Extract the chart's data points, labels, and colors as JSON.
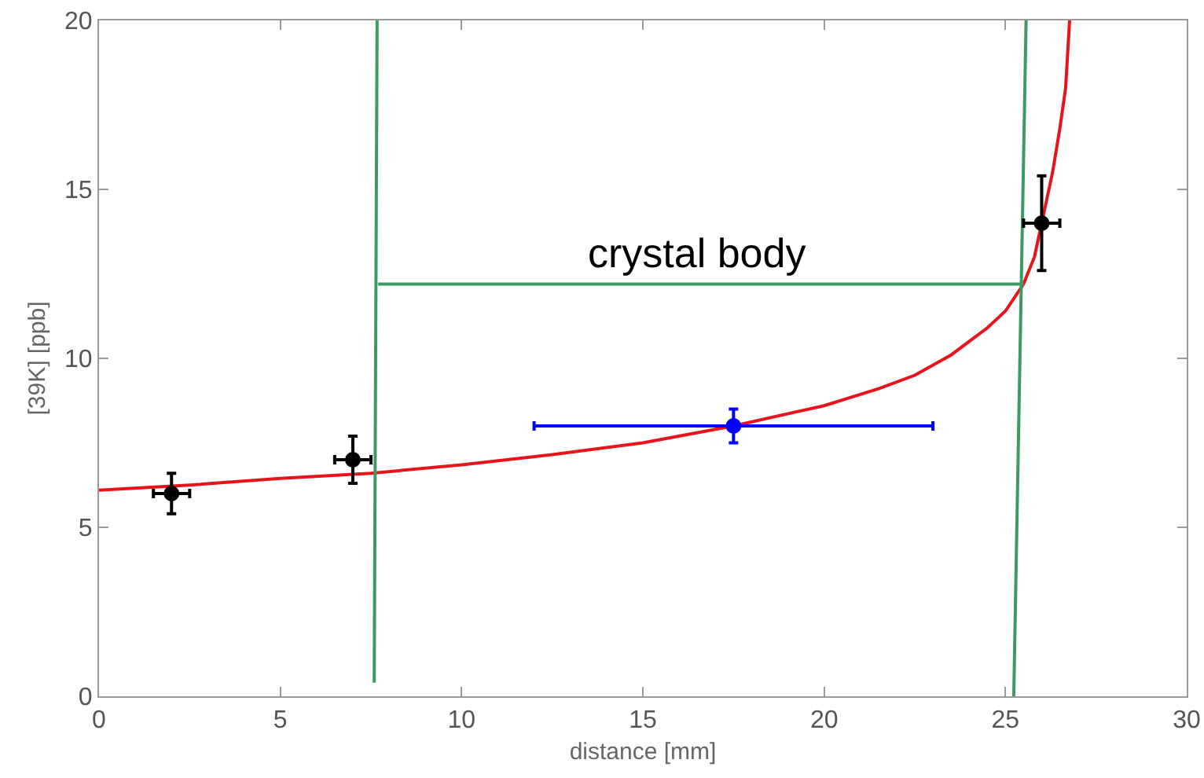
{
  "chart_data": {
    "type": "scatter",
    "xlabel": "distance [mm]",
    "ylabel": "[39K] [ppb]",
    "xlim": [
      0,
      30
    ],
    "xticks": [
      0,
      5,
      10,
      15,
      20,
      25,
      30
    ],
    "ylim": [
      0,
      20
    ],
    "yticks": [
      0,
      5,
      10,
      15,
      20
    ],
    "grid": false,
    "annotations": [
      "crystal body"
    ],
    "series": [
      {
        "type": "line",
        "marker": "none",
        "color": "#e8141b",
        "x": [
          0,
          2.5,
          5,
          7.5,
          10,
          12.5,
          15,
          17.5,
          20,
          21.5,
          22.5,
          23.5,
          24.5,
          25,
          25.5,
          25.8,
          26,
          26.3,
          26.5,
          26.66,
          26.77
        ],
        "values": [
          6.1,
          6.25,
          6.45,
          6.6,
          6.85,
          7.15,
          7.5,
          8,
          8.6,
          9.1,
          9.5,
          10.1,
          10.9,
          11.4,
          12.2,
          13,
          14,
          15.5,
          16.8,
          18,
          20
        ]
      },
      {
        "type": "line",
        "marker": "none",
        "color": "#3d9a63",
        "x": [
          7.59,
          7.67
        ],
        "values": [
          0.4,
          20
        ]
      },
      {
        "type": "line",
        "marker": "none",
        "color": "#3d9a63",
        "x": [
          7.7,
          25.5
        ],
        "values": [
          12.2,
          12.2
        ]
      },
      {
        "type": "line",
        "marker": "none",
        "color": "#3d9a63",
        "x": [
          25.23,
          25.57
        ],
        "values": [
          0,
          20
        ]
      },
      {
        "marker": "circle",
        "color": "#000000",
        "x": [
          2,
          7,
          26
        ],
        "values": [
          6,
          7,
          14
        ],
        "errors": [
          0.6,
          0.7,
          1.4
        ],
        "xerrors": [
          0.5,
          0.5,
          0.5
        ]
      },
      {
        "marker": "circle",
        "color": "#0000ff",
        "x": [
          17.5
        ],
        "values": [
          8
        ],
        "errors": [
          0.5
        ],
        "xerrors": [
          [
            12,
            23
          ]
        ]
      }
    ]
  }
}
